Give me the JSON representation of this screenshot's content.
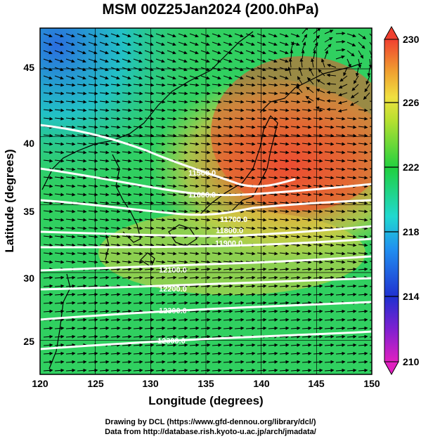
{
  "title": "MSM 00Z25Jan2024 (200.0hPa)",
  "xlabel": "Longitude (degrees)",
  "ylabel": "Latitude  (degrees)",
  "x_ticks": [
    "120",
    "125",
    "130",
    "135",
    "140",
    "145",
    "150"
  ],
  "y_ticks": [
    "25",
    "30",
    "35",
    "40",
    "45"
  ],
  "colorbar_ticks": [
    "230",
    "226",
    "222",
    "218",
    "214",
    "210"
  ],
  "contour_labels": [
    "11500.0",
    "11600.0",
    "11700.0",
    "11800.0",
    "11900.0",
    "12100.0",
    "12200.0",
    "12300.0",
    "12300.0"
  ],
  "footer": {
    "line1": "Drawing by DCL (https://www.gfd-dennou.org/library/dcl/)",
    "line2": "Data from http://database.rish.kyoto-u.ac.jp/arch/jmadata/"
  },
  "map": {
    "lon_range": [
      120,
      150
    ],
    "lat_range": [
      22.5,
      48
    ],
    "colorbar_range": [
      210,
      230
    ],
    "colors": {
      "ocean_low": "#2fd65a",
      "mid_yellow": "#e8e03a",
      "warm_orange": "#f09a2a",
      "hot_red": "#f04a3a",
      "cold_blue": "#3a7ae8",
      "contour_line": "#ffffff",
      "arrow": "#000000"
    }
  }
}
